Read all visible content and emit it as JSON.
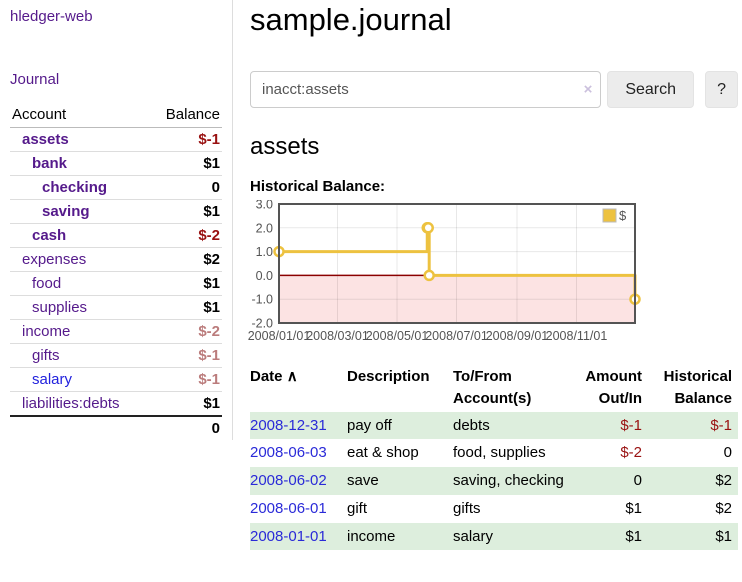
{
  "app": {
    "title": "hledger-web"
  },
  "sidebar": {
    "nav_journal": "Journal",
    "accounts_table": {
      "headers": {
        "account": "Account",
        "balance": "Balance"
      },
      "rows": [
        {
          "name": "assets",
          "level": 1,
          "bold": true,
          "balance": "$-1",
          "balance_style": "neg"
        },
        {
          "name": "bank",
          "level": 2,
          "bold": true,
          "balance": "$1",
          "balance_style": "pos"
        },
        {
          "name": "checking",
          "level": 3,
          "bold": true,
          "balance": "0",
          "balance_style": "pos"
        },
        {
          "name": "saving",
          "level": 3,
          "bold": true,
          "balance": "$1",
          "balance_style": "pos"
        },
        {
          "name": "cash",
          "level": 2,
          "bold": true,
          "balance": "$-2",
          "balance_style": "neg"
        },
        {
          "name": "expenses",
          "level": 1,
          "bold": false,
          "balance": "$2",
          "balance_style": "pos"
        },
        {
          "name": "food",
          "level": 2,
          "bold": false,
          "balance": "$1",
          "balance_style": "pos"
        },
        {
          "name": "supplies",
          "level": 2,
          "bold": false,
          "balance": "$1",
          "balance_style": "pos"
        },
        {
          "name": "income",
          "level": 1,
          "bold": false,
          "balance": "$-2",
          "balance_style": "neg-faded"
        },
        {
          "name": "gifts",
          "level": 2,
          "bold": false,
          "balance": "$-1",
          "balance_style": "neg-faded"
        },
        {
          "name": "salary",
          "level": 2,
          "bold": false,
          "balance": "$-1",
          "balance_style": "neg-faded",
          "link_style": "blue"
        },
        {
          "name": "liabilities:debts",
          "level": 1,
          "bold": false,
          "balance": "$1",
          "balance_style": "pos"
        }
      ],
      "total": "0"
    }
  },
  "header": {
    "journal_title": "sample.journal"
  },
  "search": {
    "value": "inacct:assets",
    "clear_icon": "×",
    "button_label": "Search",
    "help_label": "?"
  },
  "account_page": {
    "title": "assets",
    "chart_label": "Historical Balance:"
  },
  "chart_data": {
    "type": "line",
    "style": "step",
    "title": "Historical Balance",
    "series": [
      {
        "name": "$",
        "color": "#edc240",
        "points": [
          {
            "date": "2008-01-01",
            "value": 1
          },
          {
            "date": "2008-06-01",
            "value": 2
          },
          {
            "date": "2008-06-02",
            "value": 2
          },
          {
            "date": "2008-06-03",
            "value": 0
          },
          {
            "date": "2008-12-31",
            "value": -1
          }
        ]
      }
    ],
    "xlim": [
      "2008-01-01",
      "2008-12-31"
    ],
    "ylim": [
      -2,
      3
    ],
    "x_ticks": [
      "2008/01/01",
      "2008/03/01",
      "2008/05/01",
      "2008/07/01",
      "2008/09/01",
      "2008/11/01"
    ],
    "y_ticks": [
      "3.0",
      "2.0",
      "1.0",
      "0.0",
      "-1.0",
      "-2.0"
    ],
    "grid": true,
    "negative_region_color": "#fce3e3",
    "zero_line_color": "#8b0000",
    "border_color": "#545454",
    "legend": {
      "label": "$",
      "position": "top-right"
    }
  },
  "register_table": {
    "headers": {
      "date": "Date",
      "sort_icon": "∧",
      "description": "Description",
      "accounts": "To/From Account(s)",
      "amount": "Amount Out/In",
      "balance": "Historical Balance"
    },
    "rows": [
      {
        "date": "2008-12-31",
        "description": "pay off",
        "accounts": "debts",
        "amount": "$-1",
        "amount_style": "neg",
        "balance": "$-1",
        "balance_style": "neg"
      },
      {
        "date": "2008-06-03",
        "description": "eat & shop",
        "accounts": "food, supplies",
        "amount": "$-2",
        "amount_style": "neg",
        "balance": "0",
        "balance_style": "pos"
      },
      {
        "date": "2008-06-02",
        "description": "save",
        "accounts": "saving, checking",
        "amount": "0",
        "amount_style": "pos",
        "balance": "$2",
        "balance_style": "pos"
      },
      {
        "date": "2008-06-01",
        "description": "gift",
        "accounts": "gifts",
        "amount": "$1",
        "amount_style": "pos",
        "balance": "$2",
        "balance_style": "pos"
      },
      {
        "date": "2008-01-01",
        "description": "income",
        "accounts": "salary",
        "amount": "$1",
        "amount_style": "pos",
        "balance": "$1",
        "balance_style": "pos"
      }
    ]
  }
}
